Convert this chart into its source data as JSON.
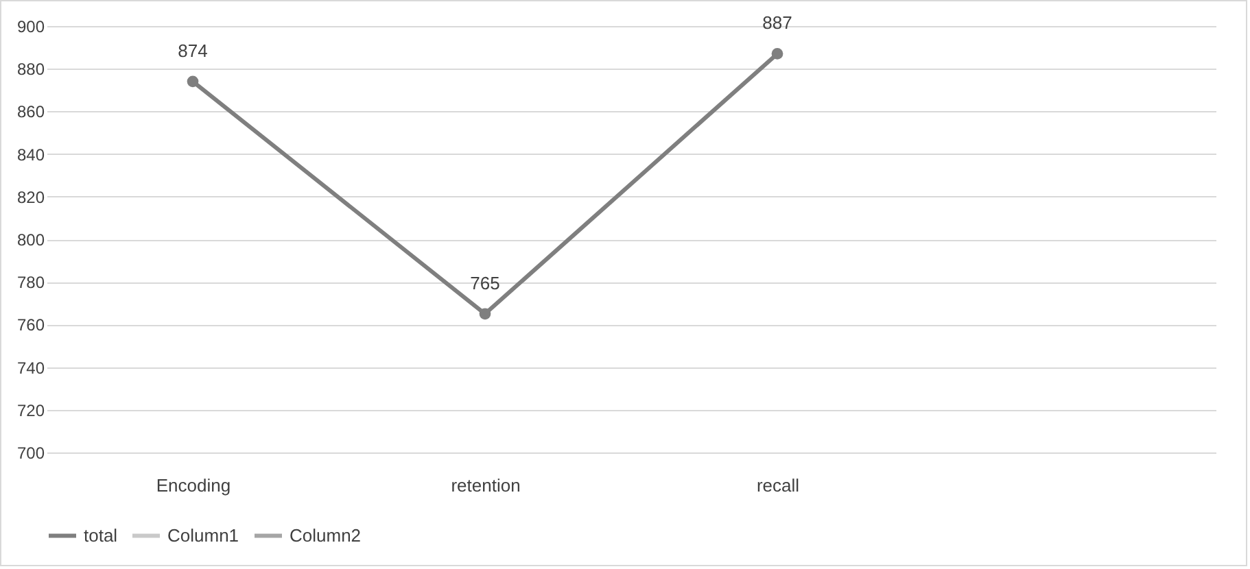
{
  "chart_data": {
    "type": "line",
    "categories": [
      "Encoding",
      "retention",
      "recall",
      null
    ],
    "series": [
      {
        "name": "total",
        "color": "#7f7f7f",
        "values": [
          874,
          765,
          887,
          null
        ]
      },
      {
        "name": "Column1",
        "color": "#c9c9c9",
        "values": [
          null,
          null,
          null,
          null
        ]
      },
      {
        "name": "Column2",
        "color": "#a5a5a5",
        "values": [
          null,
          null,
          null,
          null
        ]
      }
    ],
    "ylim": [
      700,
      900
    ],
    "yticks": [
      700,
      720,
      740,
      760,
      780,
      800,
      820,
      840,
      860,
      880,
      900
    ],
    "grid": "y",
    "legend": "bottom",
    "marker": "circle",
    "line_style": "solid",
    "data_labels": true
  }
}
